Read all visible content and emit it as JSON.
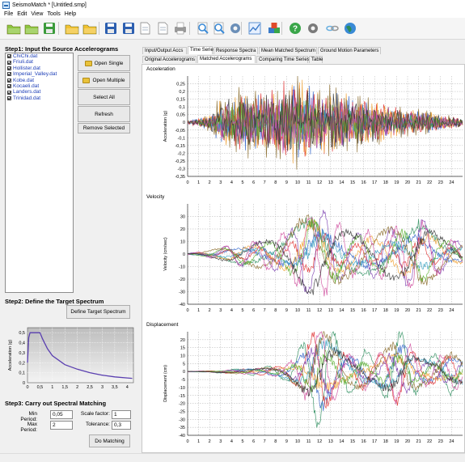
{
  "window": {
    "title": "SeismoMatch * [Untitled.smp]"
  },
  "menu": [
    "File",
    "Edit",
    "View",
    "Tools",
    "Help"
  ],
  "toolbar": {
    "icons": [
      {
        "name": "new-folder-icon",
        "color": "#8dc63f"
      },
      {
        "name": "open-folder-icon",
        "color": "#8dc63f"
      },
      {
        "name": "save-icon",
        "color": "#3b9b3b"
      },
      {
        "name": "folder-icon",
        "color": "#f2c230"
      },
      {
        "name": "folder-open-icon",
        "color": "#f2c230"
      },
      {
        "name": "save-blue-icon",
        "color": "#2c5fb0"
      },
      {
        "name": "save-all-icon",
        "color": "#2c5fb0"
      },
      {
        "name": "document-icon",
        "color": "#d9d9d9"
      },
      {
        "name": "copy-icon",
        "color": "#d9d9d9"
      },
      {
        "name": "print-icon",
        "color": "#9a9a9a"
      },
      {
        "name": "zoom-in-icon",
        "color": "#3a8ad6"
      },
      {
        "name": "zoom-out-icon",
        "color": "#3a8ad6"
      },
      {
        "name": "gear-icon",
        "color": "#6b8fb8"
      },
      {
        "name": "chart-icon",
        "color": "#3a7ac8"
      },
      {
        "name": "cubes-icon",
        "color": "#e04a2a"
      },
      {
        "name": "help-icon",
        "color": "#3aa64a"
      },
      {
        "name": "tools-icon",
        "color": "#7a7a7a"
      },
      {
        "name": "link-icon",
        "color": "#6ab0e0"
      },
      {
        "name": "globe-icon",
        "color": "#2e8b57"
      }
    ]
  },
  "step1": {
    "title": "Step1: Input the Source Accelerograms",
    "files": [
      "ChiChi.dat",
      "Friuli.dat",
      "Hollister.dat",
      "Imperial_Valley.dat",
      "Kobe.dat",
      "Kocaeli.dat",
      "Landers.dat",
      "Trinidad.dat"
    ],
    "buttons": {
      "open_single": "Open Single",
      "open_multiple": "Open Multiple",
      "select_all": "Select All",
      "refresh": "Refresh",
      "remove_selected": "Remove Selected"
    }
  },
  "step2": {
    "title": "Step2: Define the Target Spectrum",
    "define_button": "Define Target Spectrum",
    "spectrum": {
      "ylabel": "Acceleration (g)",
      "yticks": [
        "0,5",
        "0,4",
        "0,3",
        "0,2",
        "0,1",
        "0"
      ],
      "xticks": [
        "0",
        "0,5",
        "1",
        "1,5",
        "2",
        "2,5",
        "3",
        "3,5",
        "4"
      ],
      "curve_color": "#5a3fb0",
      "points": [
        [
          0,
          0.2
        ],
        [
          0.05,
          0.45
        ],
        [
          0.1,
          0.5
        ],
        [
          0.5,
          0.5
        ],
        [
          0.6,
          0.44
        ],
        [
          0.8,
          0.34
        ],
        [
          1.0,
          0.27
        ],
        [
          1.5,
          0.18
        ],
        [
          2.0,
          0.135
        ],
        [
          2.5,
          0.1
        ],
        [
          3.0,
          0.075
        ],
        [
          3.5,
          0.058
        ],
        [
          4.0,
          0.048
        ],
        [
          4.2,
          0.044
        ]
      ]
    }
  },
  "step3": {
    "title": "Step3: Carry out Spectral Matching",
    "min_period_label": "Min Period:",
    "min_period_value": "0,05",
    "max_period_label": "Max Period:",
    "max_period_value": "2",
    "scale_factor_label": "Scale factor:",
    "scale_factor_value": "1",
    "tolerance_label": "Tolerance:",
    "tolerance_value": "0,3",
    "do_matching": "Do Matching"
  },
  "tabs_main": [
    "Input/Output Accs",
    "Time Series",
    "Response Spectra",
    "Mean Matched Spectrum",
    "Ground Motion Parameters"
  ],
  "tabs_main_active": 1,
  "tabs_sub": [
    "Original Accelerograms",
    "Matched Accelerograms",
    "Comparing Time Series",
    "Table"
  ],
  "tabs_sub_active": 1,
  "series_colors": [
    "#2f8f5f",
    "#2a5fc8",
    "#e03030",
    "#f0a030",
    "#7b3fb0",
    "#36a0c0",
    "#8a6a2a",
    "#5ab030",
    "#d050a0",
    "#333333"
  ],
  "chart_data": [
    {
      "type": "line",
      "title": "Acceleration",
      "ylabel": "Acceleration (g)",
      "xlim": [
        0,
        25
      ],
      "ylim": [
        -0.35,
        0.3
      ],
      "yticks": [
        "0,25",
        "0,2",
        "0,15",
        "0,1",
        "0,05",
        "0",
        "-0,05",
        "-0,1",
        "-0,15",
        "-0,2",
        "-0,25",
        "-0,3",
        "-0,35"
      ],
      "xticks": [
        "0",
        "1",
        "2",
        "3",
        "4",
        "5",
        "6",
        "7",
        "8",
        "9",
        "10",
        "11",
        "12",
        "13",
        "14",
        "15",
        "16",
        "17",
        "18",
        "19",
        "20",
        "21",
        "22",
        "23",
        "24"
      ],
      "grid": true,
      "envelope": [
        [
          0,
          0.01
        ],
        [
          2,
          0.05
        ],
        [
          3,
          0.15
        ],
        [
          4,
          0.18
        ],
        [
          5,
          0.2
        ],
        [
          6,
          0.18
        ],
        [
          7,
          0.2
        ],
        [
          8,
          0.22
        ],
        [
          9,
          0.28
        ],
        [
          10,
          0.3
        ],
        [
          11,
          0.25
        ],
        [
          12,
          0.2
        ],
        [
          13,
          0.22
        ],
        [
          14,
          0.2
        ],
        [
          15,
          0.17
        ],
        [
          16,
          0.15
        ],
        [
          17,
          0.14
        ],
        [
          18,
          0.12
        ],
        [
          19,
          0.1
        ],
        [
          20,
          0.09
        ],
        [
          21,
          0.08
        ],
        [
          22,
          0.07
        ],
        [
          23,
          0.05
        ],
        [
          24,
          0.04
        ],
        [
          25,
          0.03
        ]
      ]
    },
    {
      "type": "line",
      "title": "Velocity",
      "ylabel": "Velocity (cm/sec)",
      "xlim": [
        0,
        25
      ],
      "ylim": [
        -40,
        40
      ],
      "yticks": [
        "30",
        "20",
        "10",
        "0",
        "-10",
        "-20",
        "-30",
        "-40"
      ],
      "xticks": [
        "0",
        "1",
        "2",
        "3",
        "4",
        "5",
        "6",
        "7",
        "8",
        "9",
        "10",
        "11",
        "12",
        "13",
        "14",
        "15",
        "16",
        "17",
        "18",
        "19",
        "20",
        "21",
        "22",
        "23",
        "24"
      ],
      "grid": true,
      "envelope": [
        [
          0,
          0.5
        ],
        [
          2,
          3
        ],
        [
          3,
          5
        ],
        [
          4,
          8
        ],
        [
          5,
          10
        ],
        [
          6,
          10
        ],
        [
          7,
          12
        ],
        [
          8,
          14
        ],
        [
          9,
          18
        ],
        [
          10,
          25
        ],
        [
          11,
          35
        ],
        [
          12,
          38
        ],
        [
          13,
          30
        ],
        [
          14,
          22
        ],
        [
          15,
          18
        ],
        [
          16,
          20
        ],
        [
          17,
          18
        ],
        [
          18,
          20
        ],
        [
          19,
          22
        ],
        [
          20,
          25
        ],
        [
          21,
          30
        ],
        [
          22,
          22
        ],
        [
          23,
          15
        ],
        [
          24,
          12
        ],
        [
          25,
          10
        ]
      ]
    },
    {
      "type": "line",
      "title": "Displacement",
      "ylabel": "Displacement (cm)",
      "xlim": [
        0,
        25
      ],
      "ylim": [
        -40,
        25
      ],
      "yticks": [
        "20",
        "15",
        "10",
        "5",
        "0",
        "-5",
        "-10",
        "-15",
        "-20",
        "-25",
        "-30",
        "-35",
        "-40"
      ],
      "xticks": [
        "0",
        "1",
        "2",
        "3",
        "4",
        "5",
        "6",
        "7",
        "8",
        "9",
        "10",
        "11",
        "12",
        "13",
        "14",
        "15",
        "16",
        "17",
        "18",
        "19",
        "20",
        "21",
        "22",
        "23",
        "24"
      ],
      "grid": true,
      "envelope": [
        [
          0,
          0.2
        ],
        [
          2,
          0.5
        ],
        [
          3,
          1
        ],
        [
          4,
          1.5
        ],
        [
          5,
          2
        ],
        [
          6,
          2.5
        ],
        [
          7,
          3
        ],
        [
          8,
          4
        ],
        [
          9,
          6
        ],
        [
          10,
          12
        ],
        [
          11,
          25
        ],
        [
          12,
          38
        ],
        [
          13,
          25
        ],
        [
          14,
          18
        ],
        [
          15,
          12
        ],
        [
          16,
          15
        ],
        [
          17,
          10
        ],
        [
          18,
          18
        ],
        [
          19,
          25
        ],
        [
          20,
          22
        ],
        [
          21,
          12
        ],
        [
          22,
          10
        ],
        [
          23,
          12
        ],
        [
          24,
          14
        ],
        [
          25,
          12
        ]
      ]
    }
  ]
}
